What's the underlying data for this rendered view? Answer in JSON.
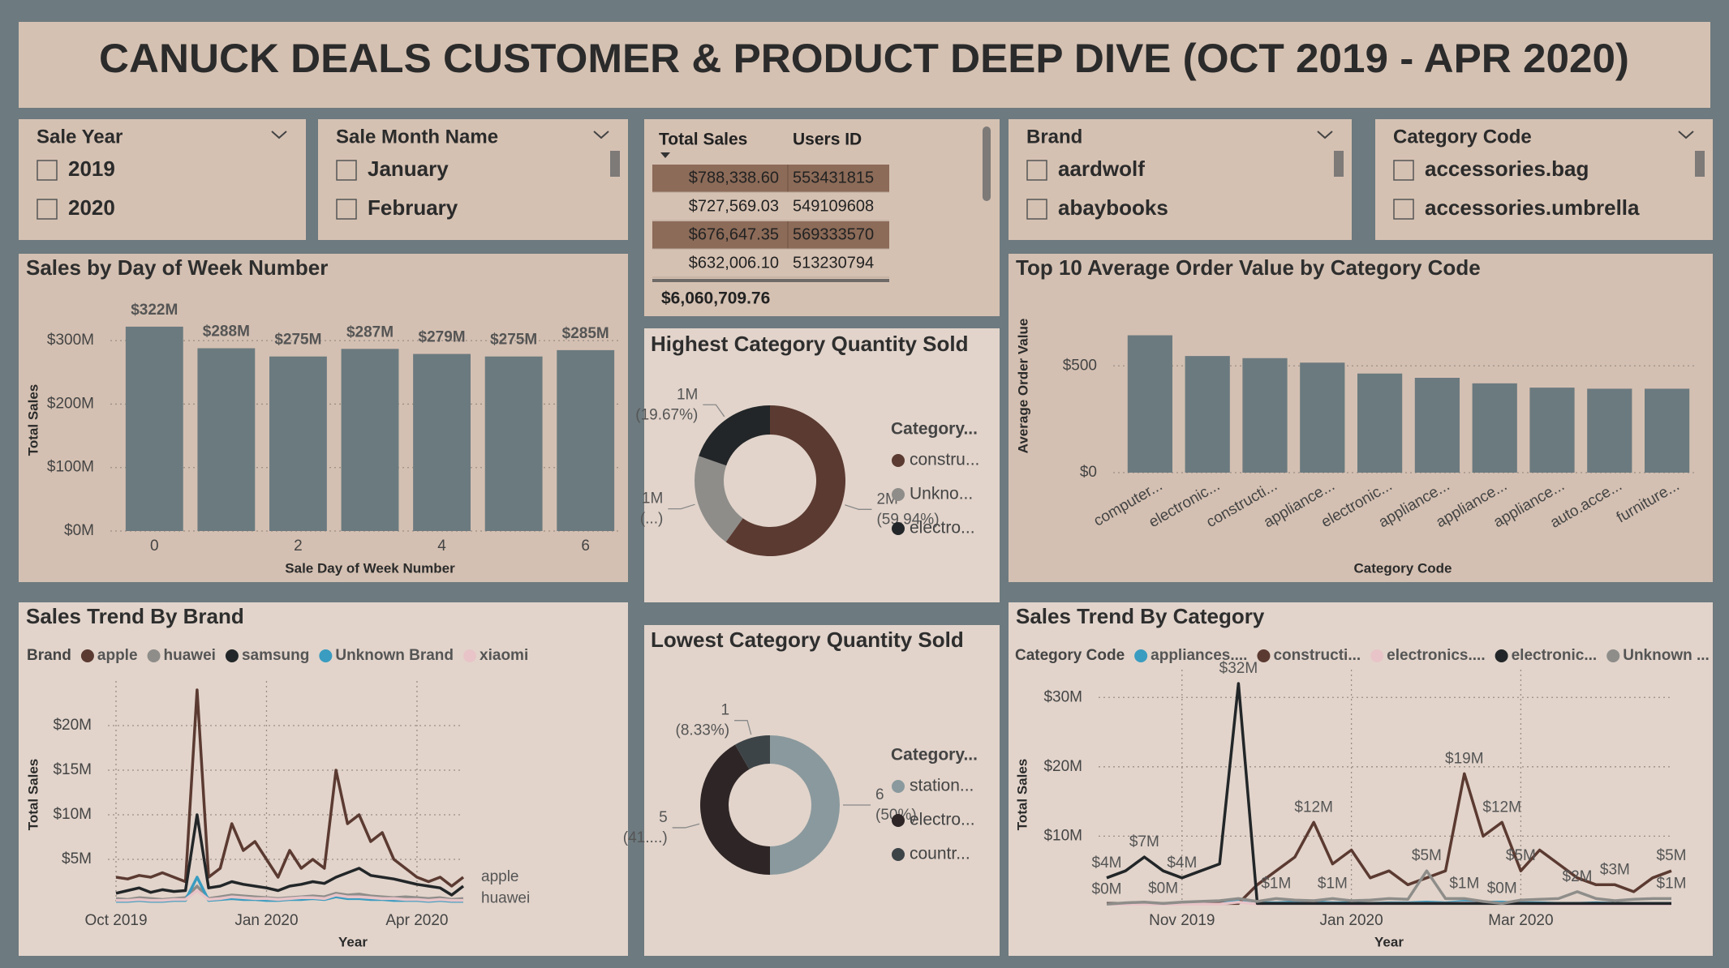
{
  "header": {
    "title": "CANUCK DEALS CUSTOMER & PRODUCT DEEP DIVE (OCT 2019 - APR 2020)"
  },
  "slicers": [
    {
      "title": "Sale Year",
      "items": [
        "2019",
        "2020"
      ]
    },
    {
      "title": "Sale Month Name",
      "items": [
        "January",
        "February"
      ]
    },
    {
      "title": "Brand",
      "items": [
        "aardwolf",
        "abaybooks"
      ]
    },
    {
      "title": "Category Code",
      "items": [
        "accessories.bag",
        "accessories.umbrella"
      ]
    }
  ],
  "table": {
    "columns": [
      "Total Sales",
      "Users ID"
    ],
    "rows": [
      [
        "$788,338.60",
        "553431815"
      ],
      [
        "$727,569.03",
        "549109608"
      ],
      [
        "$676,647.35",
        "569333570"
      ],
      [
        "$632,006.10",
        "513230794"
      ]
    ],
    "highlighted_rows": [
      0,
      2
    ],
    "total": "$6,060,709.76"
  },
  "chart_data": [
    {
      "type": "bar",
      "title": "Sales by Day of Week Number",
      "x_label": "Sale Day of Week Number",
      "y_label": "Total Sales",
      "categories": [
        "0",
        null,
        "2",
        null,
        "4",
        null,
        "6"
      ],
      "values": [
        322,
        288,
        275,
        287,
        279,
        275,
        285
      ],
      "value_labels": [
        "$322M",
        "$288M",
        "$275M",
        "$287M",
        "$279M",
        "$275M",
        "$285M"
      ],
      "color": "#6b7a7f",
      "ylim": [
        0,
        350
      ],
      "yticks": [
        {
          "value": 0,
          "label": "$0M"
        },
        {
          "value": 100,
          "label": "$100M"
        },
        {
          "value": 200,
          "label": "$200M"
        },
        {
          "value": 300,
          "label": "$300M"
        }
      ],
      "grid": true
    },
    {
      "type": "donut",
      "title": "Highest Category Quantity Sold",
      "legend_title": "Category...",
      "categories": [
        "constru...",
        "Unkno...",
        "electro..."
      ],
      "values": [
        59.94,
        20.39,
        19.67
      ],
      "value_labels": [
        "(59.94%)",
        "(...)",
        "(19.67%)"
      ],
      "quantity_labels": [
        "2M",
        "1M",
        "1M"
      ],
      "colors": [
        "#5b3a31",
        "#8e8d8a",
        "#222628"
      ]
    },
    {
      "type": "bar",
      "title": "Top 10 Average Order Value by Category Code",
      "x_label": "Category Code",
      "y_label": "Average Order Value",
      "categories": [
        "computer...",
        "electronic...",
        "constructi...",
        "appliance...",
        "electronic...",
        "appliance...",
        "appliance...",
        "appliance...",
        "auto.acce...",
        "furniture..."
      ],
      "values": [
        643,
        546,
        536,
        515,
        464,
        444,
        418,
        398,
        393,
        393
      ],
      "color": "#6b7a7f",
      "ylim": [
        0,
        740
      ],
      "yticks": [
        {
          "value": 0,
          "label": "$0"
        },
        {
          "value": 500,
          "label": "$500"
        }
      ],
      "grid": true,
      "rotate_labels": true
    },
    {
      "type": "line",
      "title": "Sales Trend By Brand",
      "x_label": "Year",
      "y_label": "Total Sales",
      "legend_title": "Brand",
      "categories": [
        "Oct 2019",
        null,
        null,
        null,
        null,
        null,
        null,
        null,
        null,
        null,
        null,
        null,
        null,
        "Jan 2020",
        null,
        null,
        null,
        null,
        null,
        null,
        null,
        null,
        null,
        null,
        null,
        null,
        "Apr 2020",
        null,
        null,
        null,
        null
      ],
      "series": [
        {
          "name": "apple",
          "color": "#5b3a31",
          "end_label": true,
          "values": [
            3,
            2.8,
            3.2,
            3,
            3.5,
            3,
            2.5,
            24,
            3,
            4,
            9,
            6,
            7,
            5,
            3,
            6,
            4,
            5,
            4,
            15,
            9,
            10,
            7,
            8,
            5,
            4,
            3,
            2.5,
            3,
            2,
            3
          ]
        },
        {
          "name": "huawei",
          "color": "#8e8d8a",
          "end_label": true,
          "values": [
            0.6,
            0.5,
            0.7,
            0.6,
            0.5,
            0.6,
            0.7,
            2,
            0.6,
            0.8,
            1,
            0.9,
            0.8,
            0.7,
            0.6,
            0.7,
            0.8,
            0.9,
            0.8,
            1.2,
            1,
            1.1,
            0.9,
            0.8,
            0.7,
            0.8,
            0.7,
            0.6,
            0.7,
            0.5,
            0.6
          ]
        },
        {
          "name": "samsung",
          "color": "#222628",
          "values": [
            1.2,
            1.5,
            1.8,
            1.3,
            1.6,
            1.4,
            1.5,
            10,
            1.8,
            2,
            2.5,
            2.2,
            2,
            1.8,
            1.5,
            2,
            2.2,
            2.5,
            2.3,
            3,
            3.5,
            4,
            3.2,
            3,
            2.8,
            2.5,
            2.2,
            2,
            1.8,
            1,
            2
          ]
        },
        {
          "name": "Unknown Brand",
          "color": "#3a9cc0",
          "values": [
            0.3,
            0.3,
            0.4,
            0.3,
            0.3,
            0.4,
            0.4,
            3,
            0.4,
            0.5,
            0.6,
            0.5,
            0.5,
            0.4,
            0.4,
            0.5,
            0.5,
            0.6,
            0.5,
            0.8,
            0.6,
            0.6,
            0.5,
            0.5,
            0.4,
            0.4,
            0.4,
            0.3,
            0.4,
            0.3,
            0.3
          ]
        },
        {
          "name": "xiaomi",
          "color": "#e8c4c8",
          "values": [
            0.4,
            0.4,
            0.5,
            0.4,
            0.4,
            0.5,
            0.5,
            1.5,
            0.5,
            0.6,
            0.8,
            0.7,
            0.6,
            0.6,
            0.5,
            0.6,
            0.7,
            0.7,
            0.6,
            1,
            0.8,
            0.8,
            0.7,
            0.6,
            0.6,
            0.5,
            0.5,
            0.4,
            0.5,
            0.4,
            0.4
          ]
        }
      ],
      "ylim": [
        0,
        25
      ],
      "yticks": [
        {
          "value": 5,
          "label": "$5M"
        },
        {
          "value": 10,
          "label": "$10M"
        },
        {
          "value": 15,
          "label": "$15M"
        },
        {
          "value": 20,
          "label": "$20M"
        }
      ],
      "grid": true
    },
    {
      "type": "donut",
      "title": "Lowest Category Quantity Sold",
      "legend_title": "Category...",
      "categories": [
        "station...",
        "electro...",
        "countr..."
      ],
      "values": [
        50,
        41.67,
        8.33
      ],
      "value_labels": [
        "(50%)",
        "(41....)",
        "(8.33%)"
      ],
      "quantity_labels": [
        "6",
        "5",
        "1"
      ],
      "colors": [
        "#8a999d",
        "#2e2626",
        "#3d4448"
      ]
    },
    {
      "type": "line",
      "title": "Sales Trend By Category",
      "x_label": "Year",
      "y_label": "Total Sales",
      "legend_title": "Category Code",
      "categories": [
        null,
        null,
        null,
        null,
        "Nov 2019",
        null,
        null,
        null,
        null,
        null,
        null,
        null,
        null,
        "Jan 2020",
        null,
        null,
        null,
        null,
        null,
        null,
        null,
        null,
        "Mar 2020",
        null,
        null,
        null,
        null,
        null,
        null,
        null,
        null
      ],
      "series": [
        {
          "name": "appliances....",
          "color": "#3a9cc0",
          "values": [
            0.3,
            0.3,
            0.4,
            0.3,
            0.3,
            0.4,
            0.3,
            0.8,
            0.4,
            0.4,
            0.5,
            0.5,
            0.4,
            0.4,
            0.3,
            0.4,
            0.4,
            0.5,
            0.4,
            0.6,
            0.5,
            0.5,
            0.4,
            0.4,
            0.3,
            0.3,
            0.4,
            0.3,
            0.3,
            0.3,
            0.3
          ]
        },
        {
          "name": "constructi...",
          "color": "#5b3a31",
          "values": [
            0.3,
            0.3,
            0.3,
            0.3,
            0.3,
            0.3,
            0.3,
            0.3,
            3,
            5,
            7,
            12,
            6,
            8,
            4,
            5,
            3,
            4,
            5,
            19,
            10,
            12,
            5,
            8,
            6,
            4,
            3,
            3,
            2,
            4,
            5
          ],
          "value_labels": [
            null,
            null,
            null,
            null,
            null,
            null,
            null,
            null,
            null,
            null,
            null,
            "$12M",
            null,
            null,
            null,
            null,
            null,
            null,
            null,
            "$19M",
            null,
            "$12M",
            "$5M",
            null,
            null,
            null,
            null,
            "$3M",
            null,
            null,
            "$5M"
          ]
        },
        {
          "name": "electronics....",
          "color": "#e8c4c8",
          "values": [
            0.2,
            0.2,
            0.2,
            0.2,
            0.2,
            0.2,
            0.2,
            0.5,
            0.2,
            0.3,
            0.3,
            0.3,
            0.3,
            0.2,
            0.2,
            0.3,
            0.3,
            0.3,
            0.3,
            0.4,
            0.3,
            0.3,
            0.3,
            0.2,
            0.2,
            0.2,
            0.2,
            0.2,
            0.2,
            0.2,
            0.2
          ]
        },
        {
          "name": "electronic...",
          "color": "#222628",
          "values": [
            4,
            5,
            7,
            5,
            4,
            5,
            6,
            32,
            0.3,
            0.3,
            0.3,
            0.3,
            0.3,
            0.3,
            0.3,
            0.3,
            0.3,
            0.3,
            0.3,
            0.3,
            0.3,
            0.3,
            0.3,
            0.3,
            0.3,
            0.3,
            0.3,
            0.3,
            0.3,
            0.3,
            0.3
          ],
          "value_labels": [
            "$4M",
            null,
            "$7M",
            null,
            "$4M",
            null,
            null,
            "$32M",
            null,
            null,
            null,
            null,
            null,
            null,
            null,
            null,
            null,
            null,
            null,
            null,
            null,
            null,
            null,
            null,
            null,
            null,
            null,
            null,
            null,
            null,
            null
          ]
        },
        {
          "name": "Unknown ...",
          "color": "#8e8d8a",
          "values": [
            0.2,
            0.4,
            0.5,
            0.3,
            0.5,
            0.6,
            0.7,
            1,
            0.6,
            1,
            0.8,
            0.7,
            1,
            0.7,
            0.8,
            1,
            0.9,
            5,
            1,
            1,
            0.6,
            0.3,
            0.8,
            0.9,
            1,
            2,
            1,
            0.7,
            0.9,
            1,
            1
          ],
          "value_labels": [
            "$0M",
            null,
            null,
            "$0M",
            null,
            null,
            null,
            null,
            null,
            "$1M",
            null,
            null,
            "$1M",
            null,
            null,
            null,
            null,
            "$5M",
            null,
            "$1M",
            null,
            "$0M",
            null,
            null,
            null,
            "$2M",
            null,
            null,
            null,
            null,
            "$1M"
          ]
        }
      ],
      "ylim": [
        0,
        34
      ],
      "yticks": [
        {
          "value": 10,
          "label": "$10M"
        },
        {
          "value": 20,
          "label": "$20M"
        },
        {
          "value": 30,
          "label": "$30M"
        }
      ],
      "grid": true
    }
  ]
}
